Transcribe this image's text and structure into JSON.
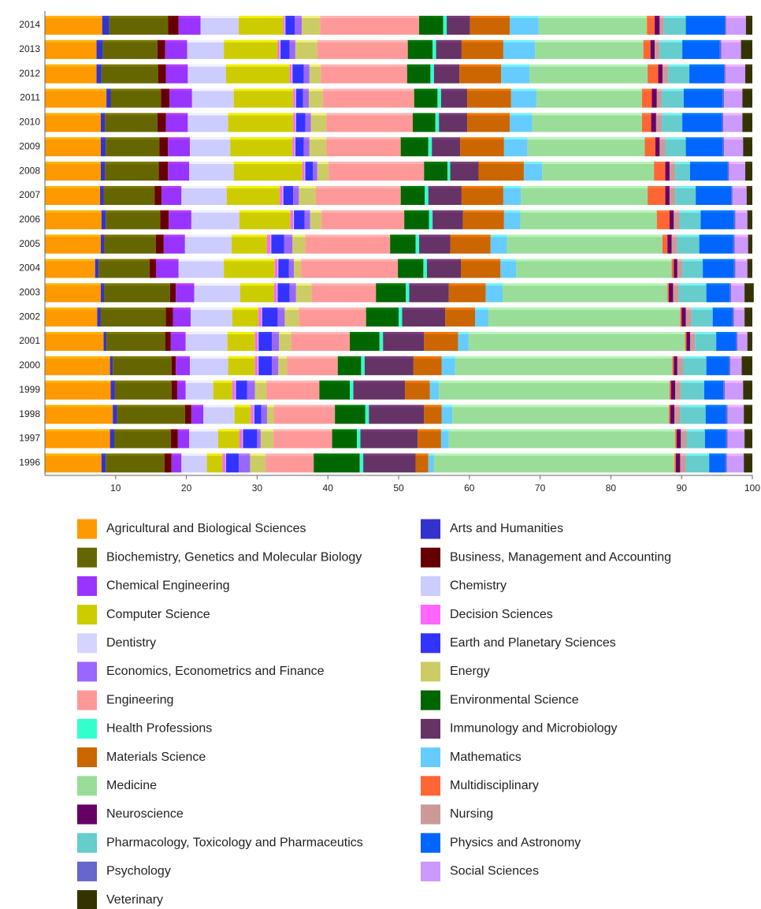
{
  "chart_data": {
    "type": "stacked_bar_horizontal",
    "categories": [
      "2014",
      "2013",
      "2012",
      "2011",
      "2010",
      "2009",
      "2008",
      "2007",
      "2006",
      "2005",
      "2004",
      "2003",
      "2002",
      "2001",
      "2000",
      "1999",
      "1998",
      "1997",
      "1996"
    ],
    "xlim": [
      0,
      100
    ],
    "xticks": [
      10,
      20,
      30,
      40,
      50,
      60,
      70,
      80,
      90,
      100
    ],
    "grid": false,
    "legend": "bottom",
    "series": [
      {
        "name": "Agricultural and Biological Sciences",
        "color": "#FF9900",
        "values": [
          8.1,
          7.3,
          7.3,
          8.7,
          7.9,
          7.9,
          7.9,
          7.8,
          8.0,
          7.9,
          7.1,
          7.9,
          7.4,
          8.3,
          9.2,
          9.3,
          9.6,
          9.2,
          8.0
        ]
      },
      {
        "name": "Arts and Humanities",
        "color": "#3333CC",
        "values": [
          1.0,
          0.9,
          0.7,
          0.6,
          0.6,
          0.7,
          0.6,
          0.5,
          0.6,
          0.5,
          0.5,
          0.5,
          0.5,
          0.4,
          0.4,
          0.6,
          0.6,
          0.6,
          0.6
        ]
      },
      {
        "name": "Biochemistry, Genetics and Molecular Biology",
        "color": "#666600",
        "values": [
          8.3,
          7.7,
          8.0,
          7.1,
          7.4,
          7.6,
          7.6,
          7.2,
          7.7,
          7.3,
          7.2,
          9.3,
          9.2,
          8.3,
          8.3,
          8.0,
          9.6,
          8.0,
          8.3
        ]
      },
      {
        "name": "Business, Management and Accounting",
        "color": "#660000",
        "values": [
          1.5,
          1.1,
          1.1,
          1.2,
          1.2,
          1.2,
          1.3,
          1.0,
          1.2,
          1.1,
          0.9,
          0.8,
          1.0,
          0.8,
          0.6,
          0.8,
          0.9,
          1.0,
          1.0
        ]
      },
      {
        "name": "Chemical Engineering",
        "color": "#9933FF",
        "values": [
          3.1,
          3.1,
          3.1,
          3.2,
          3.1,
          3.1,
          3.0,
          2.8,
          3.2,
          3.0,
          3.2,
          2.6,
          2.5,
          2.1,
          2.0,
          1.2,
          1.7,
          1.6,
          1.4
        ]
      },
      {
        "name": "Chemistry",
        "color": "#CCCCFF",
        "values": [
          5.4,
          5.2,
          5.4,
          5.9,
          5.7,
          5.7,
          6.3,
          6.4,
          6.8,
          6.6,
          6.4,
          6.5,
          5.9,
          5.9,
          5.4,
          3.9,
          4.4,
          4.1,
          3.6
        ]
      },
      {
        "name": "Computer Science",
        "color": "#CCCC00",
        "values": [
          6.3,
          7.6,
          9.0,
          8.4,
          9.2,
          8.8,
          9.7,
          7.5,
          7.2,
          5.0,
          7.2,
          4.8,
          3.7,
          3.9,
          3.8,
          2.7,
          2.3,
          3.0,
          2.2
        ]
      },
      {
        "name": "Decision Sciences",
        "color": "#FF66FF",
        "values": [
          0.2,
          0.3,
          0.3,
          0.3,
          0.3,
          0.3,
          0.3,
          0.4,
          0.4,
          0.5,
          0.4,
          0.4,
          0.4,
          0.4,
          0.4,
          0.4,
          0.4,
          0.4,
          0.4
        ]
      },
      {
        "name": "Dentistry",
        "color": "#D4D4FF",
        "values": [
          0.1,
          0.1,
          0.1,
          0.1,
          0.1,
          0.1,
          0.1,
          0.1,
          0.1,
          0.1,
          0.1,
          0.1,
          0.1,
          0.1,
          0.1,
          0.1,
          0.1,
          0.1,
          0.1
        ]
      },
      {
        "name": "Earth and Planetary Sciences",
        "color": "#3333FF",
        "values": [
          1.3,
          1.3,
          1.6,
          1.0,
          1.3,
          1.2,
          1.1,
          1.4,
          1.5,
          1.8,
          1.5,
          1.7,
          2.2,
          1.9,
          1.9,
          1.6,
          1.0,
          2.0,
          1.8
        ]
      },
      {
        "name": "Economics, Econometrics and Finance",
        "color": "#9966FF",
        "values": [
          1.0,
          0.8,
          0.8,
          0.8,
          0.8,
          0.8,
          0.6,
          0.8,
          0.8,
          1.2,
          0.7,
          0.9,
          1.0,
          1.0,
          0.9,
          1.1,
          0.8,
          0.5,
          1.6
        ]
      },
      {
        "name": "Energy",
        "color": "#CCCC66",
        "values": [
          2.6,
          3.1,
          1.6,
          2.0,
          2.2,
          2.4,
          1.6,
          2.4,
          1.6,
          1.8,
          1.0,
          2.2,
          2.0,
          1.7,
          1.2,
          1.6,
          1.0,
          1.8,
          2.2
        ]
      },
      {
        "name": "Engineering",
        "color": "#FF9999",
        "values": [
          14.0,
          12.8,
          12.2,
          12.9,
          12.2,
          10.5,
          13.5,
          12.0,
          11.7,
          12.0,
          13.7,
          9.1,
          9.5,
          8.3,
          7.2,
          7.5,
          8.6,
          8.3,
          6.8
        ]
      },
      {
        "name": "Environmental Science",
        "color": "#006600",
        "values": [
          3.4,
          3.5,
          3.3,
          3.3,
          3.2,
          3.9,
          3.3,
          3.4,
          3.5,
          3.6,
          3.6,
          4.2,
          4.6,
          4.2,
          3.3,
          4.3,
          4.3,
          3.5,
          6.5
        ]
      },
      {
        "name": "Health Professions",
        "color": "#33FFCC",
        "values": [
          0.5,
          0.5,
          0.5,
          0.5,
          0.5,
          0.5,
          0.4,
          0.5,
          0.5,
          0.5,
          0.5,
          0.5,
          0.5,
          0.5,
          0.5,
          0.5,
          0.5,
          0.5,
          0.5
        ]
      },
      {
        "name": "Immunology and Microbiology",
        "color": "#663366",
        "values": [
          3.3,
          3.6,
          3.6,
          3.7,
          4.0,
          4.0,
          4.0,
          4.7,
          4.3,
          4.4,
          4.8,
          5.6,
          6.1,
          5.8,
          6.9,
          7.3,
          7.8,
          8.1,
          7.4
        ]
      },
      {
        "name": "Materials Science",
        "color": "#CC6600",
        "values": [
          5.6,
          5.9,
          5.9,
          6.2,
          6.0,
          6.2,
          6.4,
          5.9,
          5.8,
          5.7,
          5.6,
          5.2,
          4.2,
          4.8,
          4.0,
          3.5,
          2.5,
          3.3,
          1.8
        ]
      },
      {
        "name": "Mathematics",
        "color": "#66CCFF",
        "values": [
          4.1,
          4.5,
          4.0,
          3.6,
          3.2,
          3.3,
          2.6,
          2.5,
          2.3,
          2.3,
          2.2,
          2.4,
          1.9,
          1.5,
          1.9,
          1.3,
          1.5,
          1.1,
          0.8
        ]
      },
      {
        "name": "Medicine",
        "color": "#99DD99",
        "values": [
          15.3,
          15.3,
          16.7,
          14.9,
          15.5,
          16.6,
          15.8,
          17.9,
          19.3,
          22.0,
          22.0,
          23.3,
          27.1,
          30.6,
          30.7,
          32.6,
          30.6,
          32.0,
          34.0
        ]
      },
      {
        "name": "Multidisciplinary",
        "color": "#FF6633",
        "values": [
          1.1,
          1.0,
          1.5,
          1.4,
          1.3,
          1.5,
          1.6,
          2.5,
          1.8,
          0.7,
          0.3,
          0.2,
          0.2,
          0.2,
          0.2,
          0.2,
          0.2,
          0.2,
          0.2
        ]
      },
      {
        "name": "Neuroscience",
        "color": "#660066",
        "values": [
          0.7,
          0.6,
          0.6,
          0.7,
          0.7,
          0.6,
          0.6,
          0.6,
          0.6,
          0.6,
          0.5,
          0.6,
          0.6,
          0.5,
          0.5,
          0.6,
          0.6,
          0.6,
          0.6
        ]
      },
      {
        "name": "Nursing",
        "color": "#CC9999",
        "values": [
          0.6,
          0.7,
          0.8,
          0.7,
          0.8,
          0.8,
          0.8,
          0.8,
          0.8,
          0.8,
          0.7,
          0.8,
          0.8,
          0.7,
          0.8,
          0.8,
          0.8,
          0.8,
          0.8
        ]
      },
      {
        "name": "Pharmacology, Toxicology and Pharmaceutics",
        "color": "#66CCCC",
        "values": [
          3.1,
          3.2,
          3.0,
          3.1,
          2.9,
          2.9,
          2.1,
          2.9,
          3.0,
          3.1,
          2.9,
          3.9,
          3.0,
          3.0,
          3.3,
          3.3,
          3.6,
          2.6,
          3.3
        ]
      },
      {
        "name": "Physics and Astronomy",
        "color": "#0066FF",
        "values": [
          5.5,
          5.3,
          4.9,
          5.5,
          5.6,
          5.2,
          5.3,
          5.0,
          4.7,
          4.8,
          4.4,
          3.3,
          2.8,
          2.8,
          3.2,
          2.7,
          2.9,
          3.0,
          2.3
        ]
      },
      {
        "name": "Psychology",
        "color": "#6666CC",
        "values": [
          0.2,
          0.2,
          0.2,
          0.2,
          0.2,
          0.2,
          0.2,
          0.2,
          0.2,
          0.2,
          0.2,
          0.2,
          0.2,
          0.2,
          0.2,
          0.2,
          0.2,
          0.2,
          0.2
        ]
      },
      {
        "name": "Social Sciences",
        "color": "#CC99FF",
        "values": [
          2.8,
          2.8,
          2.8,
          2.6,
          2.7,
          2.7,
          2.3,
          2.0,
          1.7,
          1.9,
          1.7,
          1.9,
          1.5,
          1.4,
          1.6,
          2.6,
          2.3,
          2.4,
          2.4
        ]
      },
      {
        "name": "Veterinary",
        "color": "#333300",
        "values": [
          0.9,
          1.6,
          1.0,
          1.4,
          1.4,
          1.3,
          1.0,
          0.8,
          0.7,
          0.6,
          0.7,
          1.3,
          1.1,
          0.7,
          1.5,
          1.3,
          1.2,
          1.1,
          1.2
        ]
      }
    ]
  }
}
